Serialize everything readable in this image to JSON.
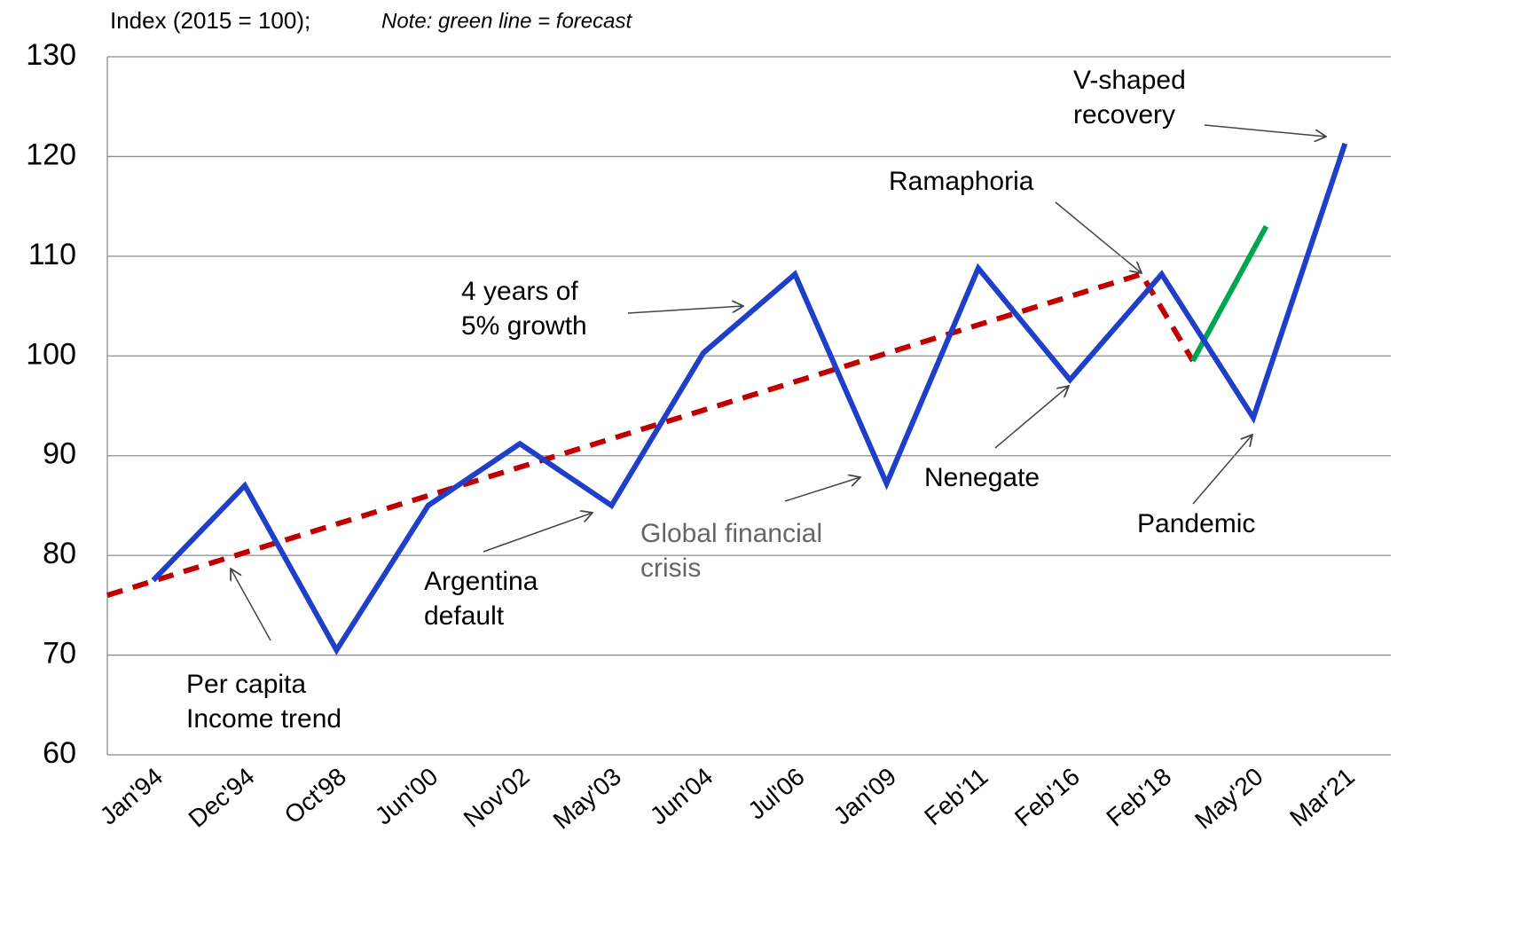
{
  "chart_data": {
    "type": "line",
    "title": "Index (2015 = 100);",
    "note": "Note: green line = forecast",
    "categories": [
      "Jan'94",
      "Dec'94",
      "Oct'98",
      "Jun'00",
      "Nov'02",
      "May'03",
      "Jun'04",
      "Jul'06",
      "Jan'09",
      "Feb'11",
      "Feb'16",
      "Feb'18",
      "May'20",
      "Mar'21"
    ],
    "series": [
      {
        "color": "#1f3fc8",
        "values": [
          77.5,
          87,
          70.5,
          85,
          91.2,
          85,
          100.3,
          108.2,
          87.2,
          108.8,
          97.6,
          108.2,
          93.8,
          121.3
        ]
      },
      {
        "color": "#c00000",
        "dashed": true,
        "x": [
          -0.5,
          10.78,
          11.34
        ],
        "values": [
          76,
          108.2,
          99.5
        ]
      },
      {
        "color": "#00a550",
        "x": [
          11.34,
          12.14
        ],
        "values": [
          99.5,
          113
        ]
      }
    ],
    "ylim": [
      60,
      130
    ],
    "yticks": [
      60,
      70,
      80,
      90,
      100,
      110,
      120,
      130
    ],
    "grid": true,
    "annotations": [
      {
        "lines": [
          "Per capita",
          "Income trend"
        ]
      },
      {
        "lines": [
          "Argentina",
          "default"
        ]
      },
      {
        "lines": [
          "Global financial",
          "crisis"
        ],
        "color": "#666666"
      },
      {
        "lines": [
          "4 years of",
          "5% growth"
        ]
      },
      {
        "lines": [
          "Ramaphoria"
        ]
      },
      {
        "lines": [
          "Nenegate"
        ]
      },
      {
        "lines": [
          "Pandemic"
        ]
      },
      {
        "lines": [
          "V-shaped",
          "recovery"
        ]
      }
    ]
  }
}
